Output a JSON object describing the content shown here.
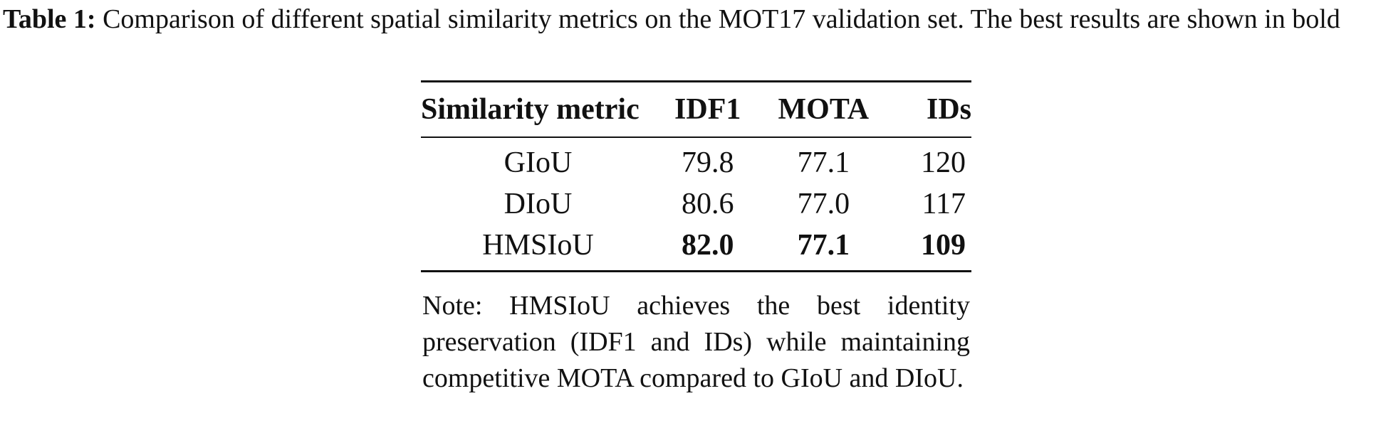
{
  "caption": {
    "label": "Table 1:",
    "text": "Comparison of different spatial similarity metrics on the MOT17 validation set. The best results are shown in bold"
  },
  "table": {
    "headers": [
      "Similarity metric",
      "IDF1",
      "MOTA",
      "IDs"
    ],
    "rows": [
      {
        "metric": "GIoU",
        "idf1": "79.8",
        "mota": "77.1",
        "ids": "120"
      },
      {
        "metric": "DIoU",
        "idf1": "80.6",
        "mota": "77.0",
        "ids": "117"
      },
      {
        "metric": "HMSIoU",
        "idf1": "82.0",
        "mota": "77.1",
        "ids": "109"
      }
    ],
    "bold_row": "HMSIoU"
  },
  "note": "Note: HMSIoU achieves the best identity preservation (IDF1 and IDs) while maintaining competitive MOTA compared to GIoU and DIoU."
}
